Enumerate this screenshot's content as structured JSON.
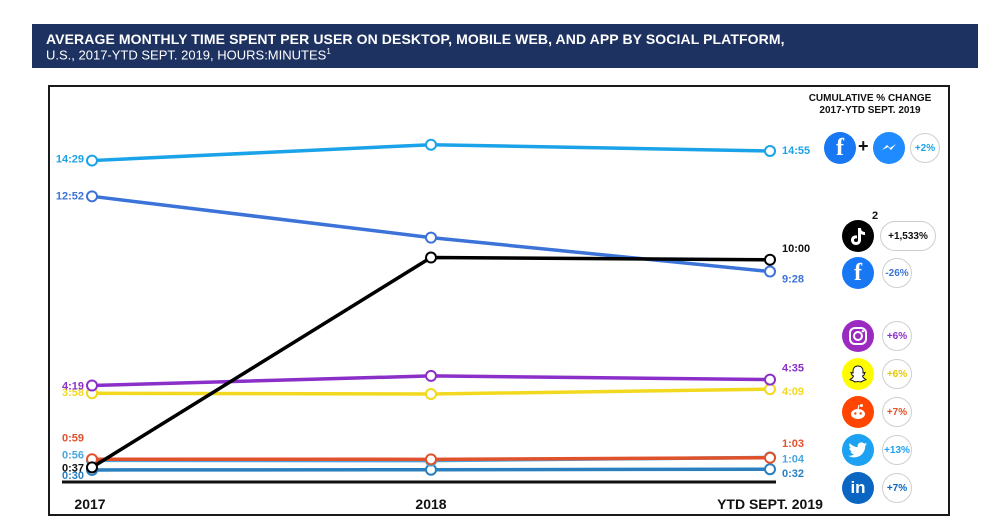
{
  "header": {
    "title": "AVERAGE MONTHLY TIME SPENT PER USER ON DESKTOP, MOBILE WEB, AND APP BY SOCIAL PLATFORM,",
    "subtitle": "U.S., 2017-YTD SEPT. 2019, HOURS:MINUTES",
    "footnote_mark": "1"
  },
  "legend": {
    "heading": "CUMULATIVE % CHANGE",
    "subheading": "2017-YTD SEPT. 2019",
    "plus_sign": "+",
    "tiktok_footnote": "2",
    "facebook_glyph": "f",
    "linkedin_glyph": "in"
  },
  "chart_data": {
    "type": "line",
    "title": "Average Monthly Time Spent per User on Desktop, Mobile Web, and App by Social Platform",
    "xlabel": "",
    "ylabel": "Hours:Minutes",
    "categories": [
      "2017",
      "2018",
      "YTD SEPT. 2019"
    ],
    "series": [
      {
        "name": "Facebook + Messenger",
        "values": [
          14.483,
          15.2,
          14.917
        ],
        "start_label": "14:29",
        "end_label": "14:55",
        "change": "+2%",
        "color": "#1aa3e8"
      },
      {
        "name": "Facebook",
        "values": [
          12.867,
          11.0,
          9.467
        ],
        "start_label": "12:52",
        "end_label": "9:28",
        "change": "-26%",
        "color": "#3b73d9"
      },
      {
        "name": "TikTok",
        "values": [
          0.617,
          10.1,
          10.0
        ],
        "start_label": "0:37",
        "end_label": "10:00",
        "change": "+1,533%",
        "color": "#000000"
      },
      {
        "name": "Instagram",
        "values": [
          4.317,
          4.75,
          4.583
        ],
        "start_label": "4:19",
        "end_label": "4:35",
        "change": "+6%",
        "color": "#8b2fc9"
      },
      {
        "name": "Snapchat",
        "values": [
          3.967,
          3.93,
          4.15
        ],
        "start_label": "3:58",
        "end_label": "4:09",
        "change": "+6%",
        "color": "#f2d91f"
      },
      {
        "name": "Reddit",
        "values": [
          0.983,
          0.98,
          1.05
        ],
        "start_label": "0:59",
        "end_label": "1:03",
        "change": "+7%",
        "color": "#e0522b"
      },
      {
        "name": "Twitter",
        "values": [
          0.933,
          0.92,
          1.067
        ],
        "start_label": "0:56",
        "end_label": "1:04",
        "change": "+13%",
        "color": "#4aa5e0"
      },
      {
        "name": "LinkedIn",
        "values": [
          0.5,
          0.51,
          0.533
        ],
        "start_label": "0:30",
        "end_label": "0:32",
        "change": "+7%",
        "color": "#2a7fbf"
      }
    ],
    "ylim": [
      0,
      16
    ]
  }
}
